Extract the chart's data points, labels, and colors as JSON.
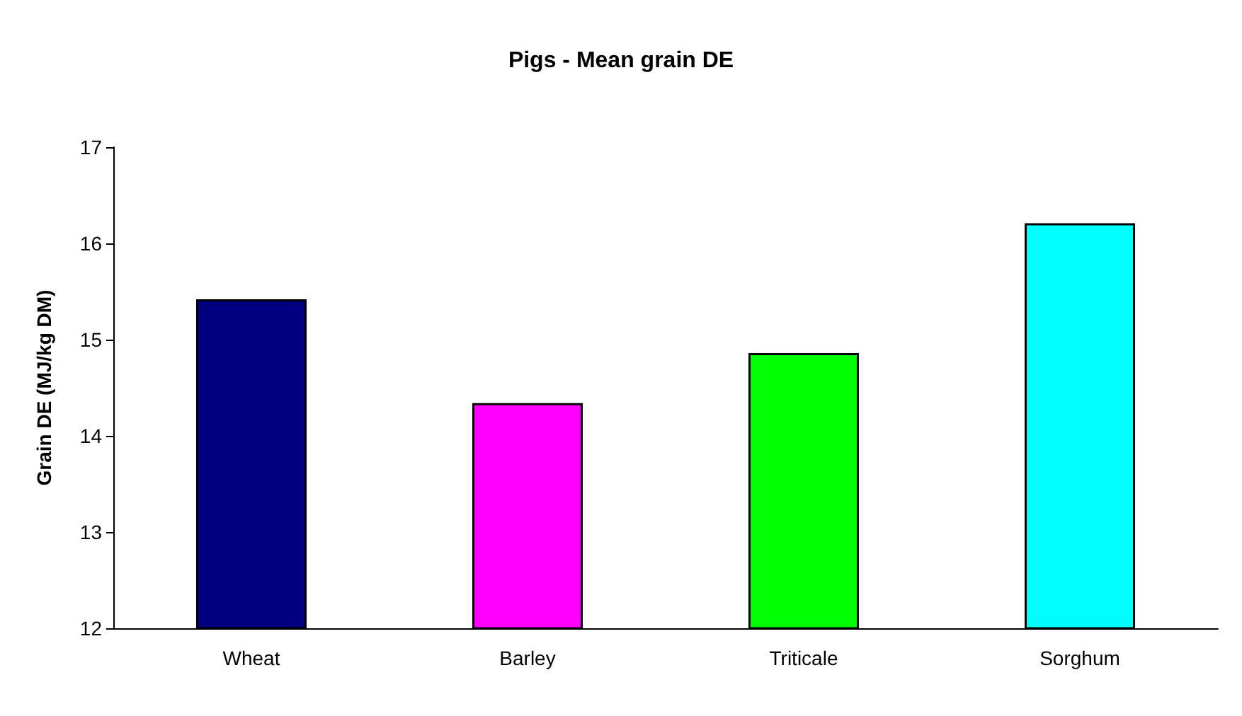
{
  "chart_data": {
    "type": "bar",
    "title": "Pigs - Mean grain DE",
    "ylabel": "Grain DE (MJ/kg DM)",
    "categories": [
      "Wheat",
      "Barley",
      "Triticale",
      "Sorghum"
    ],
    "values": [
      15.42,
      14.34,
      14.86,
      16.21
    ],
    "colors": [
      "#000080",
      "#ff00ff",
      "#00ff00",
      "#00ffff"
    ],
    "ylim": [
      12,
      17
    ],
    "yticks": [
      12,
      13,
      14,
      15,
      16,
      17
    ],
    "grid": false
  }
}
